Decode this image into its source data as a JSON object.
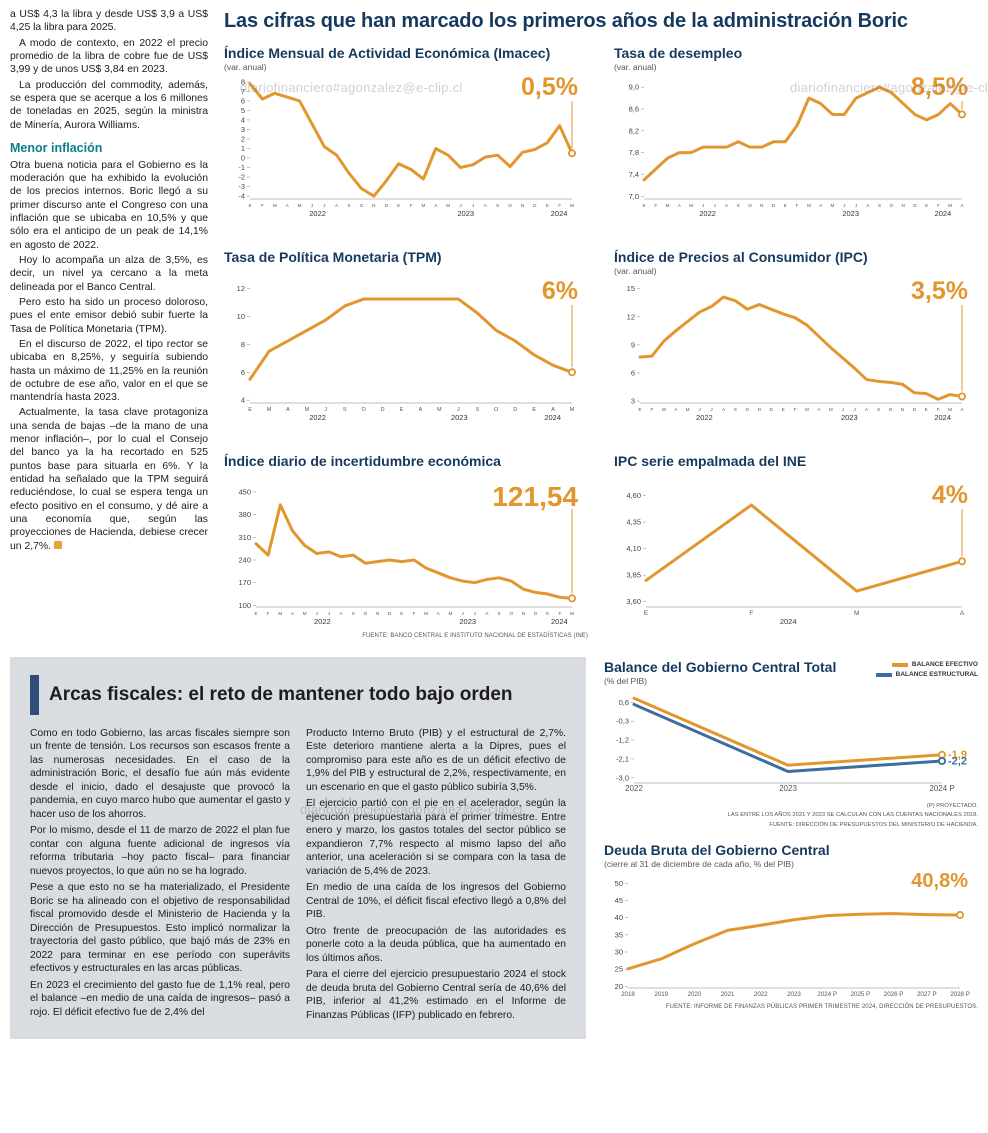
{
  "watermarks": [
    "diariofinanciero#agonzalez@e-clip.cl",
    "diariofinanciero#agonzalez@e-clip.cl",
    "diariofinanciero#agonzalez@e-clip.cl"
  ],
  "headline": "Las cifras que han marcado los primeros años de la administración Boric",
  "left_article": {
    "subhead": "Menor inflación",
    "paras": [
      "a US$ 4,3 la libra y desde US$ 3,9 a US$ 4,25 la libra para 2025.",
      "A modo de contexto, en 2022 el precio promedio de la libra de cobre fue de US$ 3,99 y de unos US$ 3,84 en 2023.",
      "La producción del commodity, además, se espera que se acerque a los 6 millones de toneladas en 2025, según la ministra de Minería, Aurora Williams.",
      "Otra buena noticia para el Gobierno es la moderación que ha exhibido la evolución de los precios internos. Boric llegó a su primer discurso ante el Congreso con una inflación que se ubicaba en 10,5% y que sólo era el anticipo de un peak de 14,1% en agosto de 2022.",
      "Hoy lo acompaña un alza de 3,5%, es decir, un nivel ya cercano a la meta delineada por el Banco Central.",
      "Pero esto ha sido un proceso doloroso, pues el ente emisor debió subir fuerte la Tasa de Política Monetaria (TPM).",
      "En el discurso de 2022, el tipo rector se ubicaba en 8,25%, y seguiría subiendo hasta un máximo de 11,25% en la reunión de octubre de ese año, valor en el que se mantendría hasta 2023.",
      "Actualmente, la tasa clave protagoniza una senda de bajas –de la mano de una menor inflación–, por lo cual el Consejo del banco ya la ha recortado en 525 puntos base para situarla en 6%. Y la entidad ha señalado que la TPM seguirá reduciéndose, lo cual se espera tenga un efecto positivo en el consumo, y dé aire a una economía que, según las proyecciones de Hacienda, debiese crecer un 2,7%."
    ]
  },
  "sources": {
    "top": "FUENTE: BANCO CENTRAL E INSTITUTO NACIONAL DE ESTADÍSTICAS (INE)"
  },
  "chart_data": [
    {
      "type": "line",
      "title": "Índice Mensual de Actividad Económica (Imacec)",
      "subtitle": "(var. anual)",
      "highlight": "0,5%",
      "color": "#E2962E",
      "ylim": [
        -4.3,
        8.3
      ],
      "yticks": [
        {
          "v": 8,
          "t": "8"
        },
        {
          "v": 7,
          "t": "7"
        },
        {
          "v": 6,
          "t": "6"
        },
        {
          "v": 5,
          "t": "5"
        },
        {
          "v": 4,
          "t": "4"
        },
        {
          "v": 3,
          "t": "3"
        },
        {
          "v": 2,
          "t": "2"
        },
        {
          "v": 1,
          "t": "1"
        },
        {
          "v": 0,
          "t": "0"
        },
        {
          "v": -1,
          "t": "-1"
        },
        {
          "v": -2,
          "t": "-2"
        },
        {
          "v": -3,
          "t": "-3"
        },
        {
          "v": -4,
          "t": "-4"
        }
      ],
      "x_labels": [
        "E",
        "F",
        "M",
        "A",
        "M",
        "J",
        "J",
        "A",
        "S",
        "O",
        "N",
        "D",
        "E",
        "F",
        "M",
        "A",
        "M",
        "J",
        "J",
        "A",
        "S",
        "O",
        "N",
        "D",
        "E",
        "F",
        "M"
      ],
      "years": [
        {
          "t": "2022",
          "f": 0.21
        },
        {
          "t": "2023",
          "f": 0.67
        },
        {
          "t": "2024",
          "f": 0.96
        }
      ],
      "values": [
        7.8,
        6.2,
        6.8,
        6.4,
        6.0,
        3.6,
        1.2,
        0.3,
        -1.6,
        -3.2,
        -4.0,
        -2.4,
        -0.6,
        -1.2,
        -2.2,
        1.0,
        0.3,
        -1.0,
        -0.7,
        0.1,
        0.3,
        -0.9,
        0.6,
        0.9,
        1.6,
        3.4,
        0.5
      ]
    },
    {
      "type": "line",
      "title": "Tasa de desempleo",
      "subtitle": "(var. anual)",
      "highlight": "8,5%",
      "color": "#E2962E",
      "ylim": [
        6.95,
        9.15
      ],
      "yticks": [
        {
          "v": 9.0,
          "t": "9,0"
        },
        {
          "v": 8.6,
          "t": "8,6"
        },
        {
          "v": 8.2,
          "t": "8,2"
        },
        {
          "v": 7.8,
          "t": "7,8"
        },
        {
          "v": 7.4,
          "t": "7,4"
        },
        {
          "v": 7.0,
          "t": "7,0"
        }
      ],
      "x_labels": [
        "E",
        "F",
        "M",
        "A",
        "M",
        "J",
        "J",
        "A",
        "S",
        "O",
        "N",
        "D",
        "E",
        "F",
        "M",
        "A",
        "M",
        "J",
        "J",
        "A",
        "S",
        "O",
        "N",
        "D",
        "E",
        "F",
        "M",
        "A"
      ],
      "years": [
        {
          "t": "2022",
          "f": 0.2
        },
        {
          "t": "2023",
          "f": 0.65
        },
        {
          "t": "2024",
          "f": 0.94
        }
      ],
      "values": [
        7.3,
        7.5,
        7.7,
        7.8,
        7.8,
        7.9,
        7.9,
        7.9,
        8.0,
        7.9,
        7.9,
        8.0,
        8.0,
        8.3,
        8.8,
        8.7,
        8.5,
        8.5,
        8.8,
        8.9,
        9.0,
        8.9,
        8.7,
        8.5,
        8.4,
        8.5,
        8.7,
        8.5
      ]
    },
    {
      "type": "line",
      "title": "Tasa de Política Monetaria (TPM)",
      "subtitle": "",
      "highlight": "6%",
      "color": "#E2962E",
      "ylim": [
        3.8,
        12.4
      ],
      "yticks": [
        {
          "v": 12,
          "t": "12"
        },
        {
          "v": 10,
          "t": "10"
        },
        {
          "v": 8,
          "t": "8"
        },
        {
          "v": 6,
          "t": "6"
        },
        {
          "v": 4,
          "t": "4"
        }
      ],
      "x_labels": [
        "E",
        "M",
        "A",
        "M",
        "J",
        "S",
        "O",
        "D",
        "E",
        "A",
        "M",
        "J",
        "S",
        "O",
        "D",
        "E",
        "A",
        "M"
      ],
      "years": [
        {
          "t": "2022",
          "f": 0.21
        },
        {
          "t": "2023",
          "f": 0.65
        },
        {
          "t": "2024",
          "f": 0.94
        }
      ],
      "values": [
        5.5,
        7.5,
        8.25,
        9.0,
        9.75,
        10.75,
        11.25,
        11.25,
        11.25,
        11.25,
        11.25,
        11.25,
        10.25,
        9.0,
        8.25,
        7.25,
        6.5,
        6.0
      ]
    },
    {
      "type": "line",
      "title": "Índice de Precios al Consumidor (IPC)",
      "subtitle": "(var. anual)",
      "highlight": "3,5%",
      "color": "#E2962E",
      "ylim": [
        2.8,
        15.6
      ],
      "yticks": [
        {
          "v": 15,
          "t": "15"
        },
        {
          "v": 12,
          "t": "12"
        },
        {
          "v": 9,
          "t": "9"
        },
        {
          "v": 6,
          "t": "6"
        },
        {
          "v": 3,
          "t": "3"
        }
      ],
      "x_labels": [
        "E",
        "F",
        "M",
        "A",
        "M",
        "J",
        "J",
        "A",
        "S",
        "O",
        "N",
        "D",
        "E",
        "F",
        "M",
        "A",
        "M",
        "J",
        "J",
        "A",
        "S",
        "O",
        "N",
        "D",
        "E",
        "F",
        "M",
        "A"
      ],
      "years": [
        {
          "t": "2022",
          "f": 0.2
        },
        {
          "t": "2023",
          "f": 0.65
        },
        {
          "t": "2024",
          "f": 0.94
        }
      ],
      "values": [
        7.7,
        7.8,
        9.4,
        10.5,
        11.5,
        12.5,
        13.1,
        14.1,
        13.7,
        12.8,
        13.3,
        12.8,
        12.3,
        11.9,
        11.1,
        9.9,
        8.7,
        7.6,
        6.5,
        5.3,
        5.1,
        5.0,
        4.8,
        3.9,
        3.8,
        3.2,
        3.7,
        3.5
      ]
    },
    {
      "type": "line",
      "title": "Índice diario de incertidumbre económica",
      "subtitle": "",
      "highlight": "121,54",
      "color": "#E2962E",
      "ylim": [
        95,
        465
      ],
      "yticks": [
        {
          "v": 450,
          "t": "450"
        },
        {
          "v": 380,
          "t": "380"
        },
        {
          "v": 310,
          "t": "310"
        },
        {
          "v": 240,
          "t": "240"
        },
        {
          "v": 170,
          "t": "170"
        },
        {
          "v": 100,
          "t": "100"
        }
      ],
      "x_labels": [
        "E",
        "F",
        "M",
        "A",
        "M",
        "J",
        "J",
        "A",
        "S",
        "O",
        "N",
        "D",
        "E",
        "F",
        "M",
        "A",
        "M",
        "J",
        "J",
        "A",
        "S",
        "O",
        "N",
        "D",
        "E",
        "F",
        "M"
      ],
      "years": [
        {
          "t": "2022",
          "f": 0.21
        },
        {
          "t": "2023",
          "f": 0.67
        },
        {
          "t": "2024",
          "f": 0.96
        }
      ],
      "values": [
        290,
        255,
        410,
        330,
        285,
        260,
        265,
        250,
        255,
        230,
        235,
        240,
        235,
        240,
        215,
        200,
        185,
        175,
        170,
        180,
        185,
        175,
        150,
        140,
        135,
        125,
        121.54
      ]
    },
    {
      "type": "line",
      "title": "IPC serie empalmada del INE",
      "subtitle": "",
      "highlight": "4%",
      "color": "#E2962E",
      "ylim": [
        3.55,
        4.68
      ],
      "yticks": [
        {
          "v": 4.6,
          "t": "4,60"
        },
        {
          "v": 4.35,
          "t": "4,35"
        },
        {
          "v": 4.1,
          "t": "4,10"
        },
        {
          "v": 3.85,
          "t": "3,85"
        },
        {
          "v": 3.6,
          "t": "3,60"
        }
      ],
      "x_labels": [
        "E",
        "F",
        "M",
        "A"
      ],
      "years": [
        {
          "t": "2024",
          "f": 0.45
        }
      ],
      "values": [
        3.8,
        4.51,
        3.7,
        3.98
      ]
    },
    {
      "type": "line",
      "title": "Balance del Gobierno Central Total",
      "subtitle": "(% del PIB)",
      "ylim": [
        -3.25,
        0.95
      ],
      "yticks": [
        {
          "v": 0.6,
          "t": "0,6"
        },
        {
          "v": -0.3,
          "t": "-0,3"
        },
        {
          "v": -1.2,
          "t": "-1,2"
        },
        {
          "v": -2.1,
          "t": "-2,1"
        },
        {
          "v": -3.0,
          "t": "-3,0"
        }
      ],
      "x_labels": [
        "2022",
        "2023",
        "2024 P"
      ],
      "years": [],
      "series": [
        {
          "name": "BALANCE EFECTIVO",
          "color": "#E2962E",
          "values": [
            0.8,
            -2.4,
            -1.9
          ],
          "end_label": "-1,9"
        },
        {
          "name": "BALANCE ESTRUCTURAL",
          "color": "#3D6E9E",
          "values": [
            0.5,
            -2.7,
            -2.2
          ],
          "end_label": "-2,2"
        }
      ],
      "notes": [
        "(P) PROYECTADO.",
        "LAS ENTRE LOS AÑOS 2021 Y 2023 SE CALCULAN CON LAS CUENTAS NACIONALES 2018.",
        "FUENTE: DIRECCIÓN DE PRESUPUESTOS DEL MINISTERIO DE HACIENDA."
      ]
    },
    {
      "type": "line",
      "title": "Deuda Bruta del Gobierno Central",
      "subtitle": "(cierre al 31 de diciembre de cada año, % del PIB)",
      "highlight": "40,8%",
      "color": "#E2962E",
      "ylim": [
        19.5,
        51
      ],
      "yticks": [
        {
          "v": 50,
          "t": "50"
        },
        {
          "v": 45,
          "t": "45"
        },
        {
          "v": 40,
          "t": "40"
        },
        {
          "v": 35,
          "t": "35"
        },
        {
          "v": 30,
          "t": "30"
        },
        {
          "v": 25,
          "t": "25"
        },
        {
          "v": 20,
          "t": "20"
        }
      ],
      "x_labels": [
        "2018",
        "2019",
        "2020",
        "2021",
        "2022",
        "2023",
        "2024 P",
        "2025 P",
        "2026 P",
        "2027 P",
        "2028 P"
      ],
      "years": [],
      "values": [
        25.1,
        28.0,
        32.4,
        36.3,
        37.8,
        39.4,
        40.6,
        41.0,
        41.2,
        40.9,
        40.8
      ],
      "source": "FUENTE: INFORME DE FINANZAS PÚBLICAS PRIMER TRIMESTRE 2024, DIRECCIÓN DE PRESUPUESTOS."
    }
  ],
  "bottom_article": {
    "title": "Arcas fiscales: el reto de mantener todo bajo orden",
    "col1": [
      "Como en todo Gobierno, las arcas fiscales siempre son un frente de tensión. Los recursos son escasos frente a las numerosas necesidades. En el caso de la administración Boric, el desafío fue aún más evidente desde el inicio, dado el desajuste que provocó la pandemia, en cuyo marco hubo que aumentar el gasto y hacer uso de los ahorros.",
      "Por lo mismo, desde el 11 de marzo de 2022 el plan fue contar con alguna fuente adicional de ingresos vía reforma tributaria –hoy pacto fiscal– para financiar nuevos proyectos, lo que aún no se ha logrado.",
      "Pese a que esto no se ha materializado, el Presidente Boric se ha alineado con el objetivo de responsabilidad fiscal promovido desde el Ministerio de Hacienda y la Dirección de Presupuestos. Esto implicó normalizar la trayectoria del gasto público, que bajó más de 23% en 2022 para terminar en ese período con superávits efectivos y estructurales en las arcas públicas.",
      "En 2023 el crecimiento del gasto fue de 1,1% real, pero el balance –en medio de una caída de ingresos– pasó a rojo. El déficit efectivo fue de 2,4% del"
    ],
    "col2": [
      "Producto Interno Bruto (PIB) y el estructural de 2,7%. Este deterioro mantiene alerta a la Dipres, pues el compromiso para este año es de un déficit efectivo de 1,9% del PIB y estructural de 2,2%, respectivamente, en un escenario en que el gasto público subiría 3,5%.",
      "El ejercicio partió con el pie en el acelerador, según la ejecución presupuestaria para el primer trimestre. Entre enero y marzo, los gastos totales del sector público se expandieron 7,7% respecto al mismo lapso del año anterior, una aceleración si se compara con la tasa de variación de 5,4% de 2023.",
      "En medio de una caída de los ingresos del Gobierno Central de 10%, el déficit fiscal efectivo llegó a 0,8% del PIB.",
      "Otro frente de preocupación de las autoridades es ponerle coto a la deuda pública, que ha aumentado en los últimos años.",
      "Para el cierre del ejercicio presupuestario 2024 el stock de deuda bruta del Gobierno Central sería de 40,6% del PIB, inferior al 41,2% estimado en el Informe de Finanzas Públicas (IFP) publicado en febrero."
    ]
  },
  "colors": {
    "accent_orange": "#E2962E",
    "line_blue": "#3D6E9E",
    "navy": "#16395E",
    "teal": "#0E7C8C"
  }
}
